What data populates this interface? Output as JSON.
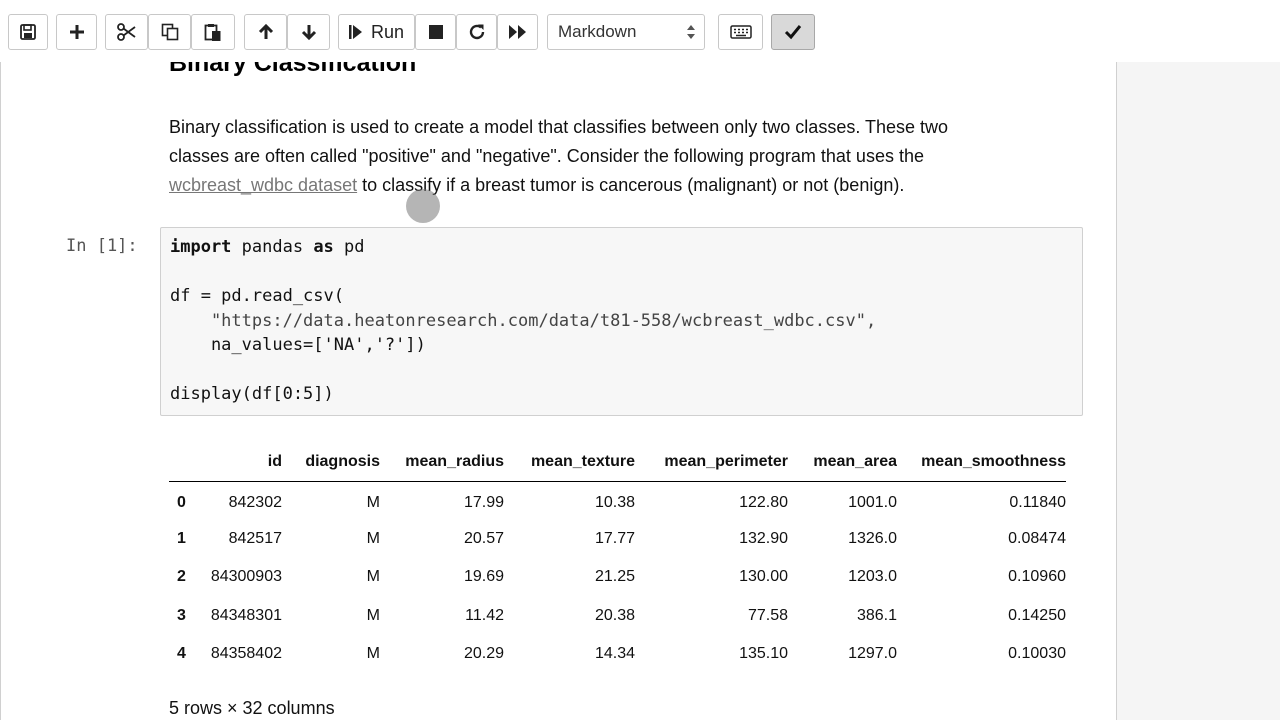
{
  "toolbar": {
    "run_label": "Run",
    "cell_type": "Markdown",
    "icons": [
      "save-icon",
      "plus-icon",
      "scissors-icon",
      "copy-icon",
      "paste-icon",
      "arrow-up-icon",
      "arrow-down-icon",
      "run-icon",
      "stop-icon",
      "restart-icon",
      "fast-forward-icon",
      "keyboard-icon",
      "check-icon"
    ]
  },
  "markdown": {
    "heading": "Binary Classification",
    "line1": "Binary classification is used to create a model that classifies between only two classes. These two",
    "line2": "classes are often called \"positive\" and \"negative\". Consider the following program that uses the",
    "link_text": "wcbreast_wdbc dataset",
    "line3_rest": " to classify if a breast tumor is cancerous (malignant) or not (benign)."
  },
  "code_cell": {
    "prompt": "In [1]:",
    "line1_kw1": "import",
    "line1_mid": " pandas ",
    "line1_kw2": "as",
    "line1_end": " pd",
    "line2": "df = pd.read_csv(",
    "line3": "    \"https://data.heatonresearch.com/data/t81-558/wcbreast_wdbc.csv\",",
    "line4": "    na_values=['NA','?'])",
    "line5": "display(df[0:5])"
  },
  "output": {
    "columns": [
      "",
      "id",
      "diagnosis",
      "mean_radius",
      "mean_texture",
      "mean_perimeter",
      "mean_area",
      "mean_smoothness"
    ],
    "rows": [
      [
        "0",
        "842302",
        "M",
        "17.99",
        "10.38",
        "122.80",
        "1001.0",
        "0.11840"
      ],
      [
        "1",
        "842517",
        "M",
        "20.57",
        "17.77",
        "132.90",
        "1326.0",
        "0.08474"
      ],
      [
        "2",
        "84300903",
        "M",
        "19.69",
        "21.25",
        "130.00",
        "1203.0",
        "0.10960"
      ],
      [
        "3",
        "84348301",
        "M",
        "11.42",
        "20.38",
        "77.58",
        "386.1",
        "0.14250"
      ],
      [
        "4",
        "84358402",
        "M",
        "20.29",
        "14.34",
        "135.10",
        "1297.0",
        "0.10030"
      ]
    ],
    "shape_note": "5 rows × 32 columns"
  }
}
